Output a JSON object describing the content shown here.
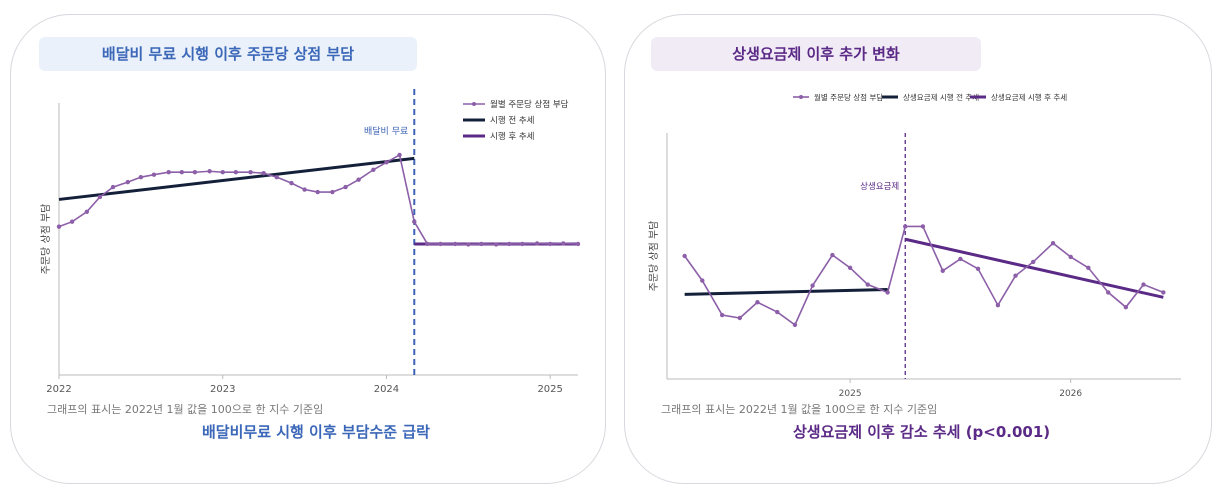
{
  "panels": [
    {
      "title": "배달비 무료 시행 이후 주문당 상점 부담",
      "note": "그래프의 표시는 2022년 1월 값을 100으로 한 지수 기준임",
      "caption": "배달비무료 시행 이후 부담수준 급락"
    },
    {
      "title": "상생요금제 이후 추가 변화",
      "note": "그래프의 표시는 2022년 1월 값을 100으로 한 지수 기준임",
      "caption": "상생요금제 이후 감소 추세 (p<0.001)"
    }
  ],
  "colors": {
    "observed": "#8c5fa8",
    "pre_trend": "#14203a",
    "post_trend": "#5b2a86",
    "left_event": "#3e63b5",
    "right_event": "#5b2a86"
  },
  "chart_data": [
    {
      "type": "line",
      "ylabel": "주문당 상점 부담",
      "xlabel": "",
      "x_ticks": [
        "2022",
        "2023",
        "2024",
        "2025"
      ],
      "event": {
        "label": "배달비 무료",
        "x": 2024.17
      },
      "legend": [
        "월별 주문당 상점 부담",
        "시행 전 추세",
        "시행 후 추세"
      ],
      "legend_position": "top-right",
      "grid": false,
      "xlim": [
        2022.0,
        2025.17
      ],
      "ylim": [
        70,
        125
      ],
      "series": [
        {
          "name": "월별 주문당 상점 부담",
          "x": [
            2022.0,
            2022.08,
            2022.17,
            2022.25,
            2022.33,
            2022.42,
            2022.5,
            2022.58,
            2022.67,
            2022.75,
            2022.83,
            2022.92,
            2023.0,
            2023.08,
            2023.17,
            2023.25,
            2023.33,
            2023.42,
            2023.5,
            2023.58,
            2023.67,
            2023.75,
            2023.83,
            2023.92,
            2024.0,
            2024.08,
            2024.17,
            2024.25,
            2024.33,
            2024.42,
            2024.5,
            2024.58,
            2024.67,
            2024.75,
            2024.83,
            2024.92,
            2025.0,
            2025.08,
            2025.17
          ],
          "values": [
            100,
            101,
            103,
            106,
            108,
            109,
            110,
            110.5,
            111,
            111,
            111,
            111.2,
            111,
            111,
            111,
            110.8,
            110,
            108.8,
            107.5,
            107,
            107,
            108,
            109.5,
            111.5,
            113,
            114.5,
            101,
            96.5,
            96.5,
            96.5,
            96.4,
            96.5,
            96.4,
            96.5,
            96.5,
            96.6,
            96.5,
            96.6,
            96.5
          ]
        },
        {
          "name": "시행 전 추세",
          "x": [
            2022.0,
            2024.17
          ],
          "values": [
            105.5,
            113.8
          ]
        },
        {
          "name": "시행 후 추세",
          "x": [
            2024.17,
            2025.17
          ],
          "values": [
            96.5,
            96.5
          ]
        }
      ]
    },
    {
      "type": "line",
      "ylabel": "주문당 상점 부담",
      "xlabel": "",
      "x_ticks": [
        "2025",
        "2026"
      ],
      "event": {
        "label": "상생요금제",
        "x": 2025.25
      },
      "legend": [
        "월별 주문당 상점 부담",
        "상생요금제 시행 전 추세",
        "상생요금제 시행 후 추세"
      ],
      "legend_position": "top",
      "grid": false,
      "xlim": [
        2024.17,
        2026.5
      ],
      "ylim": [
        85,
        110
      ],
      "series": [
        {
          "name": "월별 주문당 상점 부담",
          "x": [
            2024.25,
            2024.33,
            2024.42,
            2024.5,
            2024.58,
            2024.67,
            2024.75,
            2024.83,
            2024.92,
            2025.0,
            2025.08,
            2025.17,
            2025.25,
            2025.33,
            2025.42,
            2025.5,
            2025.58,
            2025.67,
            2025.75,
            2025.83,
            2025.92,
            2026.0,
            2026.08,
            2026.17,
            2026.25,
            2026.33,
            2026.42
          ],
          "values": [
            97.5,
            95,
            91.5,
            91.2,
            92.8,
            91.8,
            90.5,
            94.5,
            97.6,
            96.3,
            94.6,
            93.8,
            100.5,
            100.5,
            96,
            97.2,
            96.2,
            92.5,
            95.5,
            96.9,
            98.8,
            97.4,
            96.3,
            93.8,
            92.3,
            94.6,
            93.8
          ]
        },
        {
          "name": "상생요금제 시행 전 추세",
          "x": [
            2024.25,
            2025.17
          ],
          "values": [
            93.6,
            94.1
          ]
        },
        {
          "name": "상생요금제 시행 후 추세",
          "x": [
            2025.25,
            2026.42
          ],
          "values": [
            99.2,
            93.3
          ]
        }
      ]
    }
  ]
}
